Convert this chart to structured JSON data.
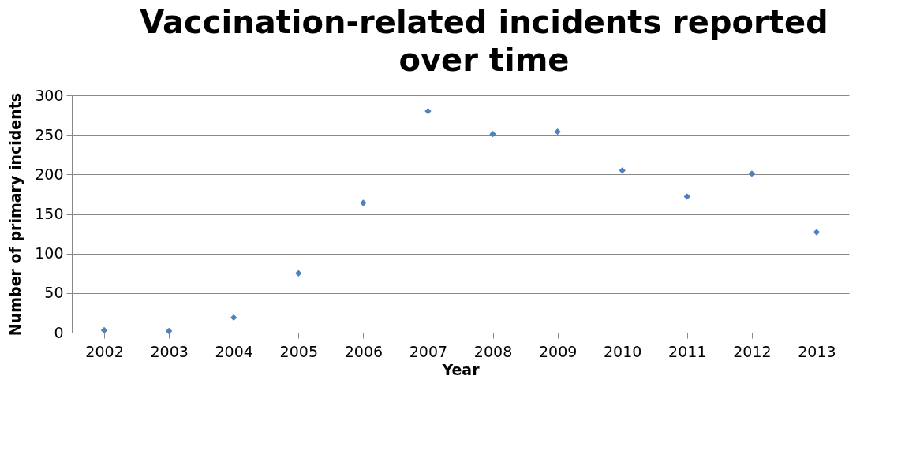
{
  "chart_data": {
    "type": "scatter",
    "title": "Vaccination-related incidents reported over time",
    "xlabel": "Year",
    "ylabel": "Number of primary incidents",
    "categories": [
      "2002",
      "2003",
      "2004",
      "2005",
      "2006",
      "2007",
      "2008",
      "2009",
      "2010",
      "2011",
      "2012",
      "2013"
    ],
    "series": [
      {
        "color": "#4f81bd",
        "values": [
          3,
          2,
          19,
          75,
          164,
          280,
          251,
          254,
          205,
          172,
          201,
          127
        ]
      }
    ],
    "ylim": [
      0,
      300
    ],
    "yticks": [
      0,
      50,
      100,
      150,
      200,
      250,
      300
    ],
    "grid": "y",
    "marker": "diamond",
    "legend": false
  }
}
